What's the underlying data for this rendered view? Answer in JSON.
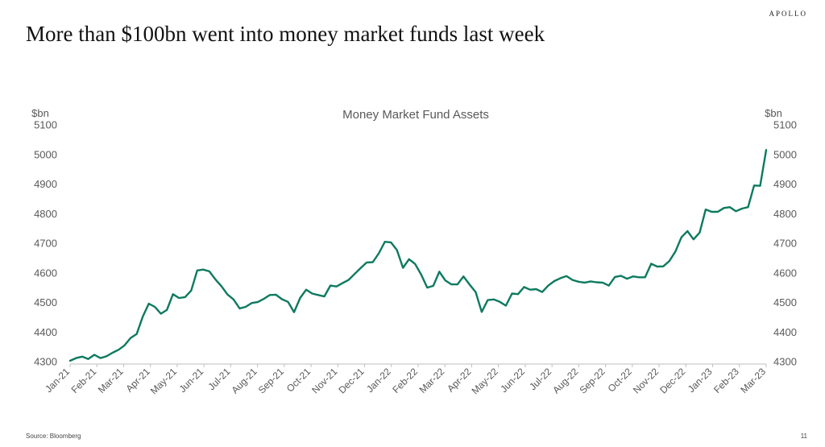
{
  "brand": "APOLLO",
  "headline": "More than $100bn went into money market funds last week",
  "footer": {
    "source": "Source: Bloomberg",
    "page": "11"
  },
  "colors": {
    "line": "#0d7a5f",
    "text": "#595959"
  },
  "chart_data": {
    "type": "line",
    "title": "Money Market Fund Assets",
    "ylabel_left": "$bn",
    "ylabel_right": "$bn",
    "ylim": [
      4300,
      5100
    ],
    "yticks": [
      4300,
      4400,
      4500,
      4600,
      4700,
      4800,
      4900,
      5000,
      5100
    ],
    "grid": false,
    "x_tick_labels": [
      "Jan-21",
      "Feb-21",
      "Mar-21",
      "Apr-21",
      "May-21",
      "Jun-21",
      "Jul-21",
      "Aug-21",
      "Sep-21",
      "Oct-21",
      "Nov-21",
      "Dec-21",
      "Jan-22",
      "Feb-22",
      "Mar-22",
      "Apr-22",
      "May-22",
      "Jun-22",
      "Jul-22",
      "Aug-22",
      "Sep-22",
      "Oct-22",
      "Nov-22",
      "Dec-22",
      "Jan-23",
      "Feb-23",
      "Mar-23"
    ],
    "series": [
      {
        "values": [
          4303,
          4312,
          4317,
          4309,
          4323,
          4312,
          4318,
          4330,
          4340,
          4355,
          4380,
          4393,
          4452,
          4496,
          4485,
          4462,
          4475,
          4528,
          4515,
          4518,
          4540,
          4608,
          4611,
          4605,
          4578,
          4555,
          4527,
          4510,
          4480,
          4485,
          4498,
          4501,
          4512,
          4525,
          4526,
          4511,
          4502,
          4467,
          4515,
          4543,
          4530,
          4525,
          4520,
          4557,
          4554,
          4565,
          4576,
          4596,
          4616,
          4635,
          4636,
          4666,
          4705,
          4703,
          4677,
          4617,
          4646,
          4630,
          4594,
          4550,
          4556,
          4604,
          4574,
          4561,
          4561,
          4588,
          4560,
          4535,
          4468,
          4508,
          4510,
          4502,
          4489,
          4530,
          4528,
          4552,
          4543,
          4545,
          4535,
          4557,
          4572,
          4582,
          4589,
          4576,
          4570,
          4567,
          4571,
          4568,
          4567,
          4557,
          4586,
          4590,
          4580,
          4588,
          4585,
          4585,
          4631,
          4621,
          4622,
          4640,
          4672,
          4720,
          4741,
          4713,
          4736,
          4814,
          4806,
          4806,
          4819,
          4822,
          4808,
          4817,
          4822,
          4895,
          4894,
          5015
        ]
      }
    ]
  }
}
